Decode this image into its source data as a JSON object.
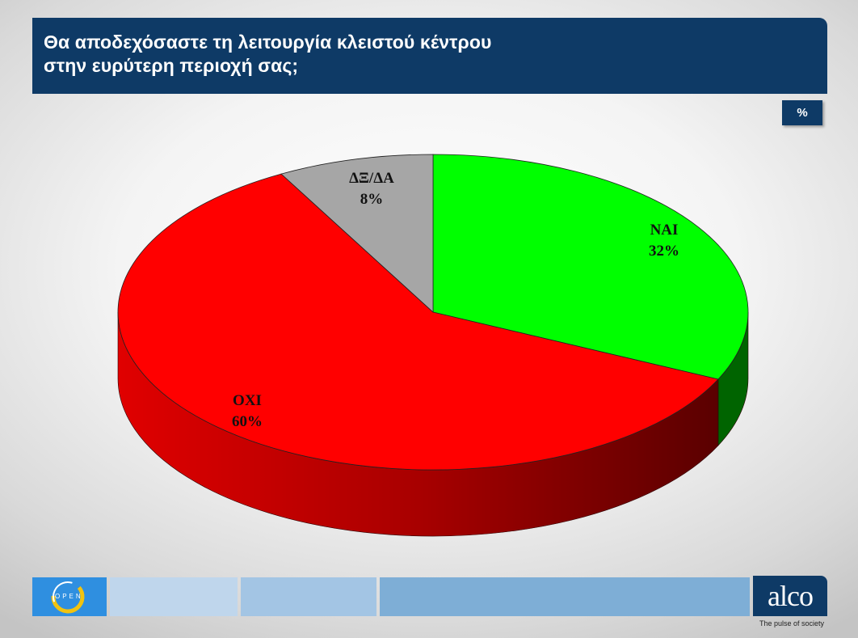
{
  "header": {
    "title_line1": "Θα αποδεχόσαστε τη λειτουργία κλειστού κέντρου",
    "title_line2": "στην ευρύτερη περιοχή σας;"
  },
  "unit_badge": "%",
  "chart_data": {
    "type": "pie",
    "title": "Θα αποδεχόσαστε τη λειτουργία κλειστού κέντρου στην ευρύτερη περιοχή σας;",
    "unit": "%",
    "slices": [
      {
        "label": "ΝΑΙ",
        "value": 32,
        "value_label": "32%",
        "color": "#00ff00",
        "side_color": "#006400"
      },
      {
        "label": "ΟΧΙ",
        "value": 60,
        "value_label": "60%",
        "color": "#ff0000",
        "side_color": "#8b0000"
      },
      {
        "label": "ΔΞ/ΔΑ",
        "value": 8,
        "value_label": "8%",
        "color": "#a6a6a6",
        "side_color": "#555555"
      }
    ],
    "legend": "none"
  },
  "footer": {
    "left_logo_text": "OPEN",
    "right_logo_text": "alco",
    "right_logo_tagline": "The pulse of society",
    "bar_colors": [
      "#bfd6ec",
      "#a3c5e4",
      "#7eaed6"
    ]
  }
}
